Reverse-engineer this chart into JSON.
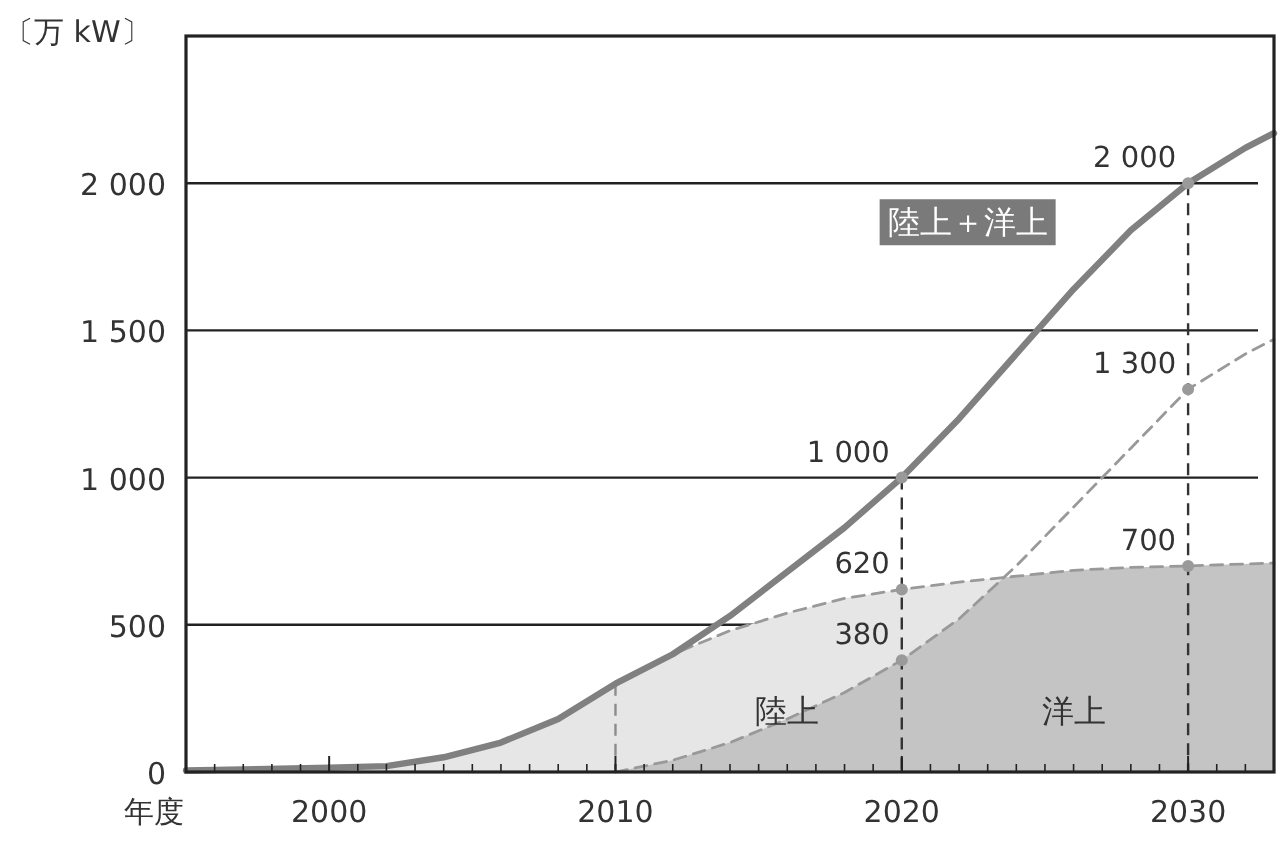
{
  "chart_data": {
    "type": "line",
    "ylabel": "〔万 kW〕",
    "xlabel": "年度",
    "xlim": [
      1995,
      2033
    ],
    "ylim": [
      0,
      2500
    ],
    "xticks": [
      2000,
      2010,
      2020,
      2030
    ],
    "yticks": [
      0,
      500,
      {
        "value": 1000,
        "label": "1 000"
      },
      {
        "value": 1500,
        "label": "1 500"
      },
      {
        "value": 2000,
        "label": "2 000"
      }
    ],
    "grid": "y",
    "ref_lines": [
      {
        "axis": "x",
        "value": 2010,
        "label": null,
        "color": "#8c8c8c",
        "line_style": "dashed"
      },
      {
        "axis": "x",
        "value": 2020,
        "label": null,
        "color": "#333333",
        "line_style": "dashed"
      },
      {
        "axis": "x",
        "value": 2030,
        "label": null,
        "color": "#333333",
        "line_style": "dashed"
      }
    ],
    "series": [
      {
        "name": "陸上",
        "type": "area",
        "color": "#e6e6e6",
        "line_style": "dashed",
        "x": [
          1995,
          2000,
          2002,
          2004,
          2006,
          2008,
          2010,
          2012,
          2014,
          2016,
          2018,
          2020,
          2022,
          2024,
          2026,
          2028,
          2030,
          2033
        ],
        "values": [
          5,
          15,
          20,
          50,
          100,
          180,
          300,
          400,
          480,
          540,
          590,
          620,
          645,
          665,
          685,
          695,
          700,
          710
        ],
        "value_labels": [
          null,
          null,
          null,
          null,
          null,
          null,
          null,
          null,
          null,
          null,
          null,
          "620",
          null,
          null,
          null,
          null,
          "700",
          null
        ]
      },
      {
        "name": "洋上",
        "type": "area",
        "color": "#c4c4c4",
        "line_style": "dashed",
        "x": [
          2010,
          2012,
          2014,
          2016,
          2018,
          2020,
          2022,
          2024,
          2026,
          2028,
          2030,
          2032,
          2033
        ],
        "values": [
          0,
          40,
          100,
          180,
          270,
          380,
          520,
          700,
          900,
          1100,
          1300,
          1420,
          1470
        ],
        "value_labels": [
          null,
          null,
          null,
          null,
          null,
          "380",
          null,
          null,
          null,
          null,
          "1 300",
          null,
          null
        ]
      },
      {
        "name": "陸上＋洋上",
        "type": "line",
        "color": "#808080",
        "line_style": "solid",
        "x": [
          1995,
          2000,
          2002,
          2004,
          2006,
          2008,
          2010,
          2012,
          2014,
          2016,
          2018,
          2020,
          2022,
          2024,
          2026,
          2028,
          2030,
          2032,
          2033
        ],
        "values": [
          5,
          15,
          20,
          50,
          100,
          180,
          300,
          400,
          530,
          680,
          830,
          1000,
          1200,
          1420,
          1640,
          1840,
          2000,
          2120,
          2170
        ],
        "value_labels": [
          null,
          null,
          null,
          null,
          null,
          null,
          null,
          null,
          null,
          null,
          null,
          "1 000",
          null,
          null,
          null,
          null,
          "2 000",
          null,
          null
        ]
      }
    ]
  }
}
